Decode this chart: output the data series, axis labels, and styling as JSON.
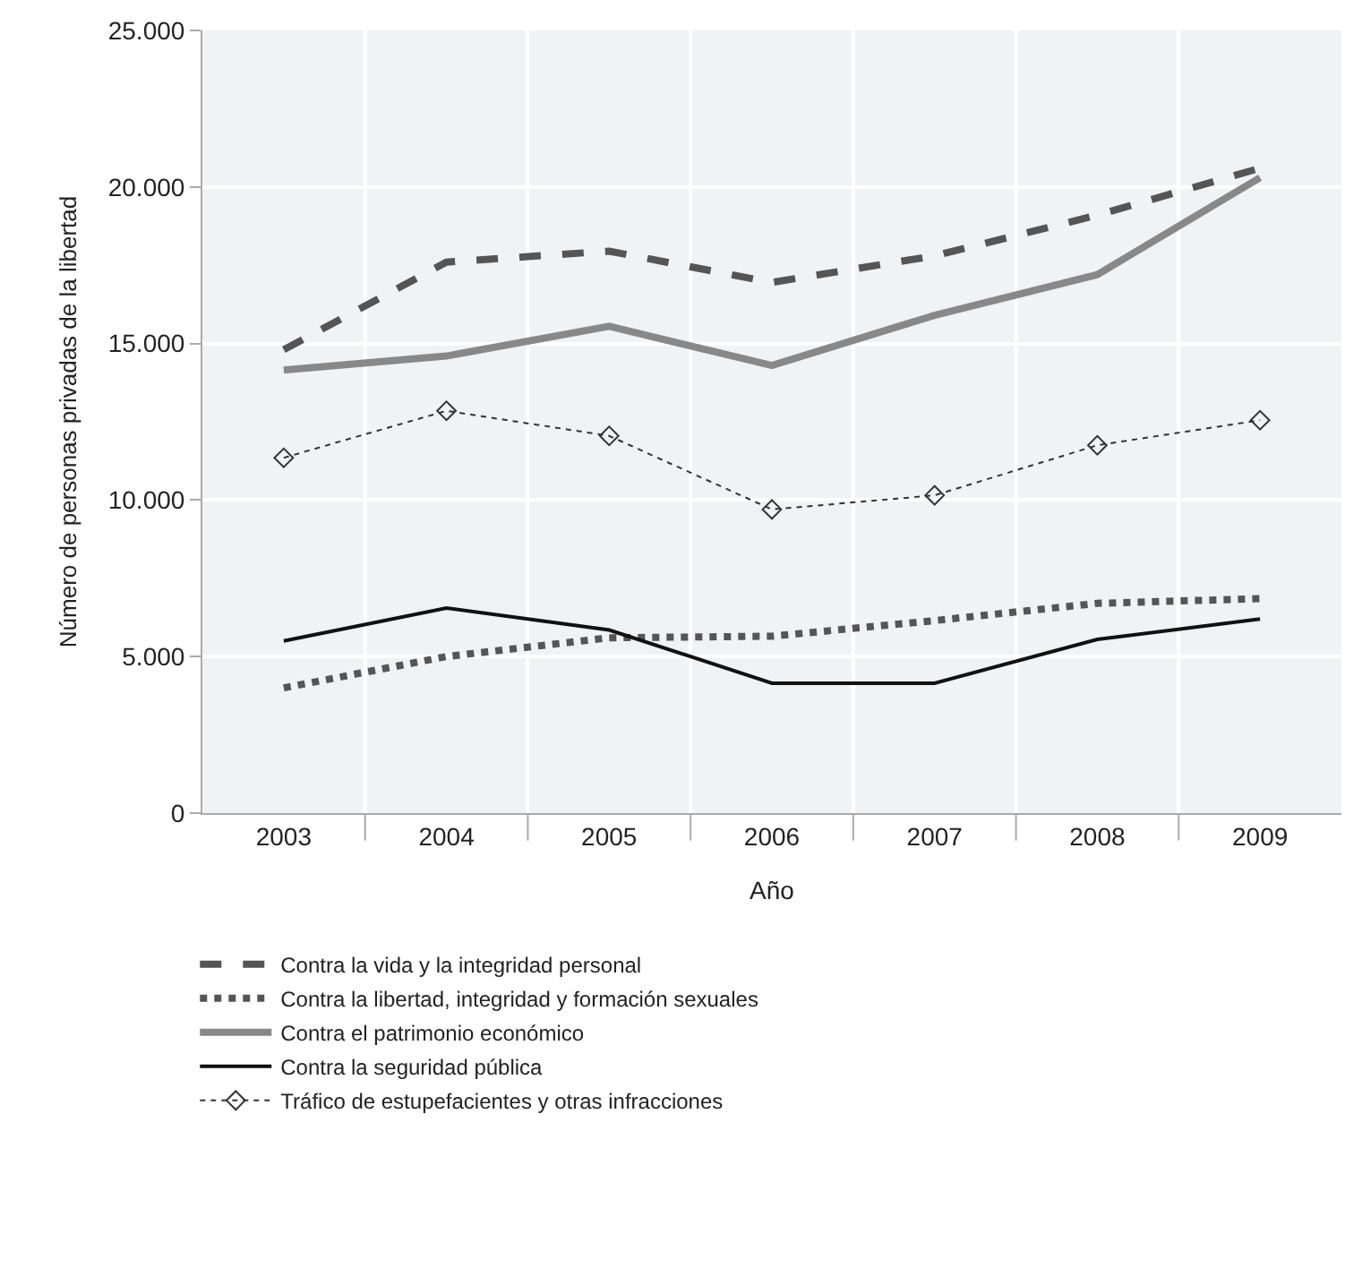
{
  "chart_data": {
    "type": "line",
    "xlabel": "Año",
    "ylabel": "Número de personas privadas de la libertad",
    "categories": [
      "2003",
      "2004",
      "2005",
      "2006",
      "2007",
      "2008",
      "2009"
    ],
    "series": [
      {
        "name": "Contra la vida y la integridad personal",
        "color": "#555555",
        "line_style": "dashed",
        "values": [
          14800,
          17600,
          17950,
          16950,
          17800,
          19100,
          20600
        ]
      },
      {
        "name": "Contra la libertad, integridad y formación sexuales",
        "color": "#555555",
        "line_style": "dotted",
        "values": [
          4000,
          5000,
          5600,
          5650,
          6150,
          6700,
          6850
        ]
      },
      {
        "name": "Contra el patrimonio económico",
        "color": "#888888",
        "line_style": "solid",
        "values": [
          14150,
          14600,
          15550,
          14300,
          15900,
          17200,
          20300
        ]
      },
      {
        "name": "Contra la seguridad pública",
        "color": "#111111",
        "line_style": "solid",
        "values": [
          5500,
          6550,
          5850,
          4150,
          4150,
          5550,
          6200
        ]
      },
      {
        "name": "Tráfico de estupefacientes y otras infracciones",
        "color": "#333333",
        "line_style": "dotted",
        "marker": "diamond",
        "values": [
          11350,
          12850,
          12050,
          9700,
          10150,
          11750,
          12550
        ]
      }
    ],
    "ylim": [
      0,
      25000
    ],
    "yticks": [
      {
        "value": 0,
        "label": "0"
      },
      {
        "value": 5000,
        "label": "5.000"
      },
      {
        "value": 10000,
        "label": "10.000"
      },
      {
        "value": 15000,
        "label": "15.000"
      },
      {
        "value": 20000,
        "label": "20.000"
      },
      {
        "value": 25000,
        "label": "25.000"
      }
    ],
    "grid": true,
    "legend": "bottom left"
  }
}
